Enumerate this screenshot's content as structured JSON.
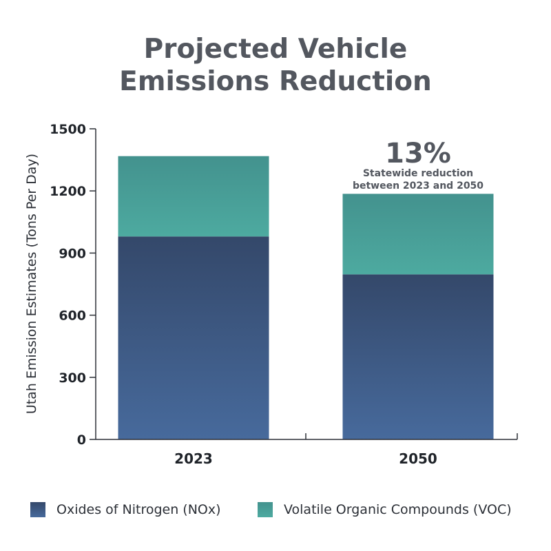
{
  "chart_data": {
    "type": "bar",
    "stacked": true,
    "title": [
      "Projected Vehicle",
      "Emissions Reduction"
    ],
    "ylabel": "Utah Emission Estimates (Tons Per Day)",
    "xlabel": "",
    "categories": [
      "2023",
      "2050"
    ],
    "ylim": [
      0,
      1500
    ],
    "yticks": [
      0,
      300,
      600,
      900,
      1200,
      1500
    ],
    "grid": false,
    "legend_position": "bottom",
    "series": [
      {
        "name": "Oxides of Nitrogen (NOx)",
        "values": [
          980,
          797
        ],
        "color_top": "#34486a",
        "color_bottom": "#476a9c"
      },
      {
        "name": "Volatile Organic Compounds (VOC)",
        "values": [
          388,
          389
        ],
        "color_top": "#43928e",
        "color_bottom": "#4daaa0"
      }
    ],
    "annotation": {
      "category": "2050",
      "value": "13%",
      "line1": "Statewide reduction",
      "line2": "between 2023 and 2050"
    }
  }
}
